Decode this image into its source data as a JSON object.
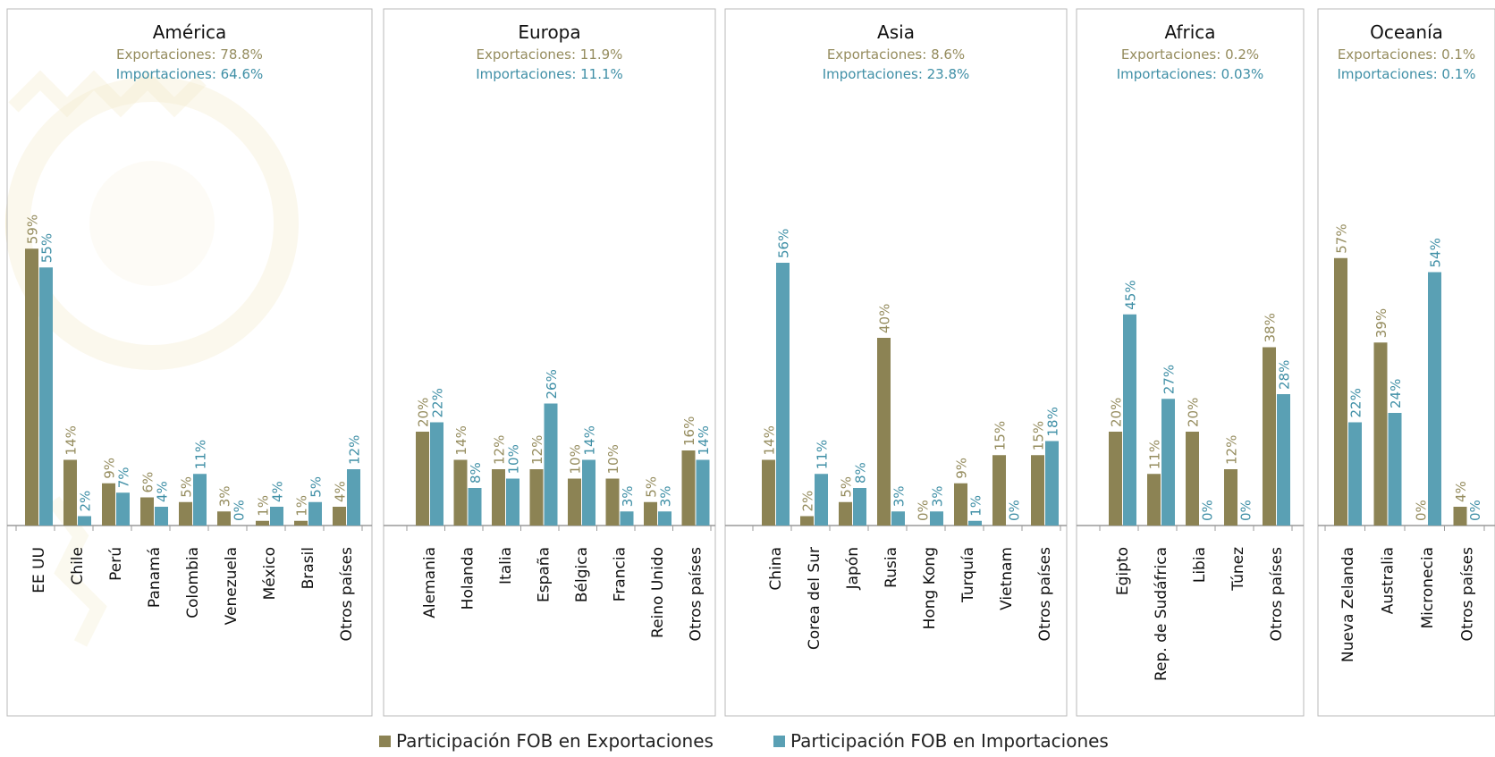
{
  "legend": {
    "exports_label": "Participación FOB en Exportaciones",
    "imports_label": "Participación FOB en Importaciones"
  },
  "colors": {
    "exports": "#8c8354",
    "imports": "#5aa0b4",
    "exports_text": "#958c5e",
    "imports_text": "#3f8fa6",
    "panel_border": "#b8b8b8",
    "axis": "#9a9a9a",
    "watermark": "#e6d28c"
  },
  "chart_data": [
    {
      "type": "bar",
      "title": "América",
      "exports_summary": "Exportaciones:  78.8%",
      "imports_summary": "Importaciones: 64.6%",
      "categories": [
        "EE UU",
        "Chile",
        "Perú",
        "Panamá",
        "Colombia",
        "Venezuela",
        "México",
        "Brasil",
        "Otros países"
      ],
      "series": [
        {
          "name": "Participación FOB en Exportaciones",
          "values": [
            59,
            14,
            9,
            6,
            5,
            3,
            1,
            1,
            4
          ],
          "labels": [
            "59%",
            "14%",
            "9%",
            "6%",
            "5%",
            "3%",
            "1%",
            "1%",
            "4%"
          ]
        },
        {
          "name": "Participación FOB en Importaciones",
          "values": [
            55,
            2,
            7,
            4,
            11,
            0,
            4,
            5,
            12
          ],
          "labels": [
            "55%",
            "2%",
            "7%",
            "4%",
            "11%",
            "0%",
            "4%",
            "5%",
            "12%"
          ]
        }
      ],
      "ylim": [
        0,
        70
      ]
    },
    {
      "type": "bar",
      "title": "Europa",
      "exports_summary": "Exportaciones: 11.9%",
      "imports_summary": "Importaciones: 11.1%",
      "categories": [
        "Alemania",
        "Holanda",
        "Italia",
        "España",
        "Bélgica",
        "Francia",
        "Reino Unido",
        "Otros países"
      ],
      "series": [
        {
          "name": "Participación FOB en Exportaciones",
          "values": [
            20,
            14,
            12,
            12,
            10,
            10,
            5,
            16
          ],
          "labels": [
            "20%",
            "14%",
            "12%",
            "12%",
            "10%",
            "10%",
            "5%",
            "16%"
          ]
        },
        {
          "name": "Participación FOB en Importaciones",
          "values": [
            22,
            8,
            10,
            26,
            14,
            3,
            3,
            14
          ],
          "labels": [
            "22%",
            "8%",
            "10%",
            "26%",
            "14%",
            "3%",
            "3%",
            "14%"
          ]
        }
      ],
      "ylim": [
        0,
        70
      ]
    },
    {
      "type": "bar",
      "title": "Asia",
      "exports_summary": "Exportaciones: 8.6%",
      "imports_summary": "Importaciones: 23.8%",
      "categories": [
        "China",
        "Corea del Sur",
        "Japón",
        "Rusia",
        "Hong Kong",
        "Turquía",
        "Vietnam",
        "Otros países"
      ],
      "series": [
        {
          "name": "Participación FOB en Exportaciones",
          "values": [
            14,
            2,
            5,
            40,
            0,
            9,
            15,
            15
          ],
          "labels": [
            "14%",
            "2%",
            "5%",
            "40%",
            "0%",
            "9%",
            "15%",
            "15%"
          ]
        },
        {
          "name": "Participación FOB en Importaciones",
          "values": [
            56,
            11,
            8,
            3,
            3,
            1,
            0,
            18
          ],
          "labels": [
            "56%",
            "11%",
            "8%",
            "3%",
            "3%",
            "1%",
            "0%",
            "18%"
          ]
        }
      ],
      "ylim": [
        0,
        70
      ]
    },
    {
      "type": "bar",
      "title": "Africa",
      "exports_summary": "Exportaciones: 0.2%",
      "imports_summary": "Importaciones: 0.03%",
      "categories": [
        "Egipto",
        "Rep. de Sudáfrica",
        "Libia",
        "Túnez",
        "Otros países"
      ],
      "series": [
        {
          "name": "Participación FOB en Exportaciones",
          "values": [
            20,
            11,
            20,
            12,
            38
          ],
          "labels": [
            "20%",
            "11%",
            "20%",
            "12%",
            "38%"
          ]
        },
        {
          "name": "Participación FOB en Importaciones",
          "values": [
            45,
            27,
            0,
            0,
            28
          ],
          "labels": [
            "45%",
            "27%",
            "0%",
            "0%",
            "28%"
          ]
        }
      ],
      "ylim": [
        0,
        70
      ]
    },
    {
      "type": "bar",
      "title": "Oceanía",
      "exports_summary": "Exportaciones: 0.1%",
      "imports_summary": "Importaciones: 0.1%",
      "categories": [
        "Nueva Zelanda",
        "Australia",
        "Micronecia",
        "Otros países"
      ],
      "series": [
        {
          "name": "Participación FOB en Exportaciones",
          "values": [
            57,
            39,
            0,
            4
          ],
          "labels": [
            "57%",
            "39%",
            "0%",
            "4%"
          ]
        },
        {
          "name": "Participación FOB en Importaciones",
          "values": [
            22,
            24,
            54,
            0
          ],
          "labels": [
            "22%",
            "24%",
            "54%",
            "0%"
          ]
        }
      ],
      "ylim": [
        0,
        70
      ]
    }
  ]
}
